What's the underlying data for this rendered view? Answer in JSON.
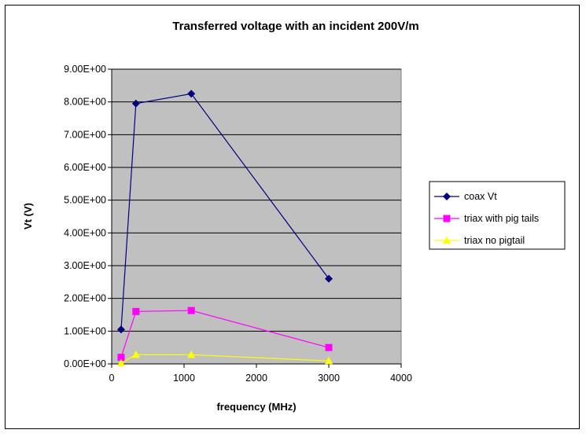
{
  "chart_data": {
    "type": "line",
    "title": "Transferred voltage with an incident 200V/m",
    "xlabel": "frequency (MHz)",
    "ylabel": "Vt (V)",
    "xlim": [
      0,
      4000
    ],
    "ylim": [
      0,
      9
    ],
    "x_ticks": [
      0,
      1000,
      2000,
      3000,
      4000
    ],
    "x_tick_labels": [
      "0",
      "1000",
      "2000",
      "3000",
      "4000"
    ],
    "y_ticks": [
      0,
      1,
      2,
      3,
      4,
      5,
      6,
      7,
      8,
      9
    ],
    "y_tick_labels": [
      "0.00E+00",
      "1.00E+00",
      "2.00E+00",
      "3.00E+00",
      "4.00E+00",
      "5.00E+00",
      "6.00E+00",
      "7.00E+00",
      "8.00E+00",
      "9.00E+00"
    ],
    "grid": "horizontal",
    "legend_position": "right",
    "plot_background": "#c0c0c0",
    "series": [
      {
        "name": "coax Vt",
        "color": "#000080",
        "marker": "diamond",
        "x": [
          130,
          335,
          1100,
          3000
        ],
        "y": [
          1.05,
          7.95,
          8.25,
          2.6
        ]
      },
      {
        "name": "triax with pig tails",
        "color": "#ff00ff",
        "marker": "square",
        "x": [
          130,
          335,
          1100,
          3000
        ],
        "y": [
          0.2,
          1.6,
          1.63,
          0.5
        ]
      },
      {
        "name": "triax no pigtail",
        "color": "#ffff00",
        "marker": "triangle",
        "x": [
          130,
          335,
          1100,
          3000
        ],
        "y": [
          0.02,
          0.28,
          0.28,
          0.09
        ]
      }
    ]
  }
}
